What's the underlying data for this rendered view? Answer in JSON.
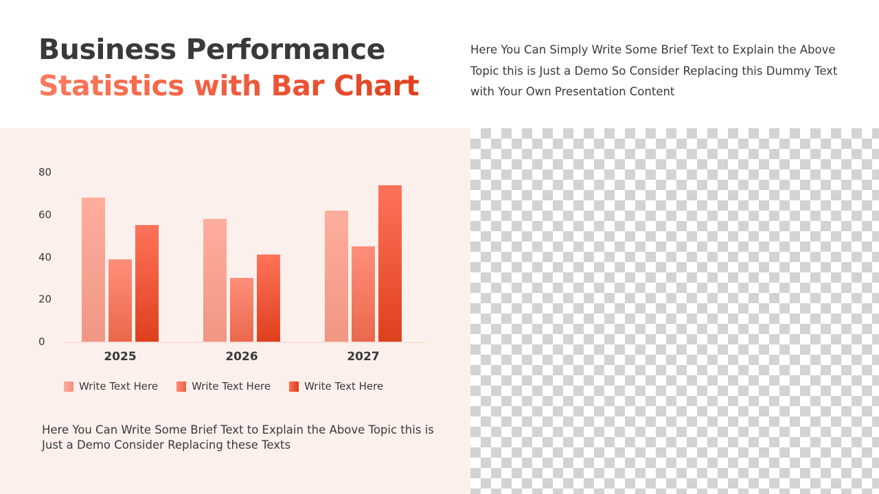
{
  "title": {
    "line1": "Business Performance",
    "line2": "Statistics with Bar Chart"
  },
  "description_top": "Here You Can Simply Write Some Brief Text to Explain the Above Topic this is Just a Demo So Consider Replacing this Dummy Text with Your Own Presentation Content",
  "description_bottom": "Here You Can Write Some Brief Text to Explain the Above Topic this is Just a Demo Consider Replacing these Texts",
  "colors": {
    "title_dark": "#3a3838",
    "accent_light": "#ff7a5e",
    "accent_dark": "#e0401f",
    "panel_bg": "#fcf0ec",
    "series": [
      "#f7a08e",
      "#f47a60",
      "#e8502f"
    ]
  },
  "chart_data": {
    "type": "bar",
    "title": "",
    "xlabel": "",
    "ylabel": "",
    "categories": [
      "2025",
      "2026",
      "2027"
    ],
    "series": [
      {
        "name": "Write Text Here",
        "values": [
          68,
          58,
          62
        ]
      },
      {
        "name": "Write Text Here",
        "values": [
          39,
          30,
          45
        ]
      },
      {
        "name": "Write Text Here",
        "values": [
          55,
          41,
          74
        ]
      }
    ],
    "yticks": [
      "0",
      "20",
      "40",
      "60",
      "80"
    ],
    "ylim": [
      0,
      80
    ],
    "grid": false,
    "legend_position": "bottom"
  }
}
